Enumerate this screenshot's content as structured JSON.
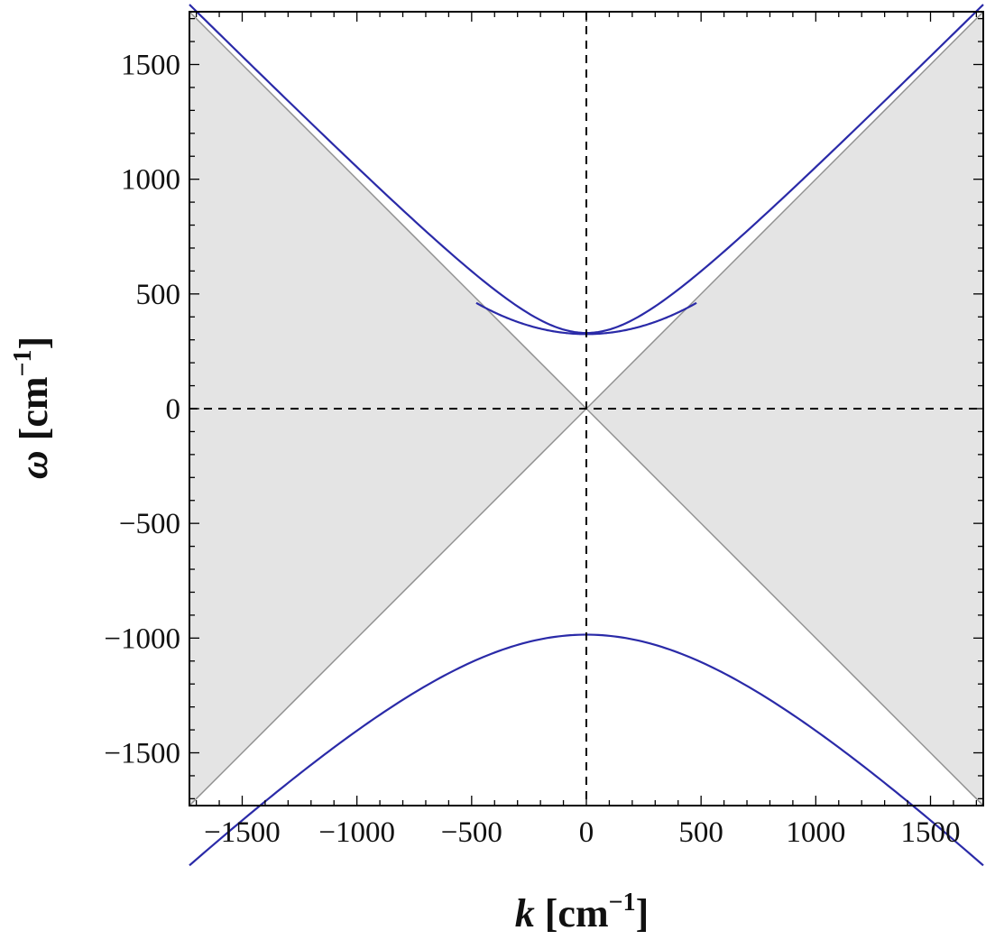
{
  "chart_data": {
    "type": "line",
    "title": "",
    "xlabel": {
      "symbol": "k",
      "unit_open": " [cm",
      "unit_exp": "−1",
      "unit_close": "]"
    },
    "ylabel": {
      "symbol": "ω",
      "unit_open": " [cm",
      "unit_exp": "−1",
      "unit_close": "]"
    },
    "xlim": [
      -1730,
      1730
    ],
    "ylim": [
      -1730,
      1730
    ],
    "xticks": [
      -1500,
      -1000,
      -500,
      0,
      500,
      1000,
      1500
    ],
    "yticks": [
      -1500,
      -1000,
      -500,
      0,
      500,
      1000,
      1500
    ],
    "xtick_labels": [
      "−1500",
      "−1000",
      "−500",
      "0",
      "500",
      "1000",
      "1500"
    ],
    "ytick_labels": [
      "−1500",
      "−1000",
      "−500",
      "0",
      "500",
      "1000",
      "1500"
    ],
    "grid": false,
    "legend": "none",
    "shaded_regions": [
      {
        "description": "|ω| < |k| on the left and right (light cone exterior)",
        "color": "#e4e4e4"
      }
    ],
    "light_cone_lines": {
      "slopes": [
        1,
        -1
      ],
      "color": "#909090"
    },
    "reference_lines": [
      {
        "orientation": "vertical",
        "value": 0,
        "style": "dashed",
        "color": "#000000"
      },
      {
        "orientation": "horizontal",
        "value": 0,
        "style": "dashed",
        "color": "#000000"
      }
    ],
    "series": [
      {
        "branch": "upper-outer",
        "omega0": 330,
        "k_range": [
          -1730,
          1730
        ],
        "sign": 1,
        "color": "#2a2aa8"
      },
      {
        "branch": "upper-inner",
        "omega0": 325,
        "k_range": [
          -480,
          480
        ],
        "curvature": 0.00059,
        "sign": 1,
        "color": "#2a2aa8"
      },
      {
        "branch": "lower",
        "omega0": -985,
        "k_range": [
          -1730,
          1730
        ],
        "sign": -1,
        "color": "#2a2aa8"
      }
    ],
    "colors": {
      "curve": "#2a2aa8",
      "shade": "#e4e4e4",
      "cone": "#909090",
      "frame": "#000000"
    }
  }
}
